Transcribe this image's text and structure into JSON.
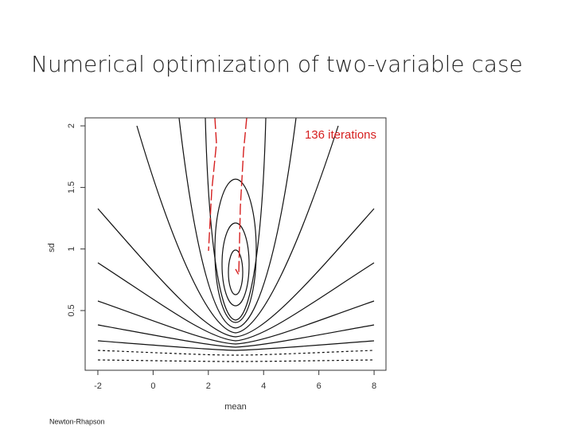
{
  "chart_data": {
    "type": "contour",
    "title": "Numerical optimization of two-variable case",
    "annotation": "136 iterations",
    "note": "Newton-Rhapson",
    "xlabel": "mean",
    "ylabel": "sd",
    "xlim": [
      -2.46,
      8.43
    ],
    "xticks": [
      -2,
      0,
      2,
      4,
      6,
      8
    ],
    "ylim": [
      0.015,
      2.065
    ],
    "yticks": [
      0.5,
      1.0,
      1.5,
      2.0
    ],
    "path_color": "#d62020"
  }
}
